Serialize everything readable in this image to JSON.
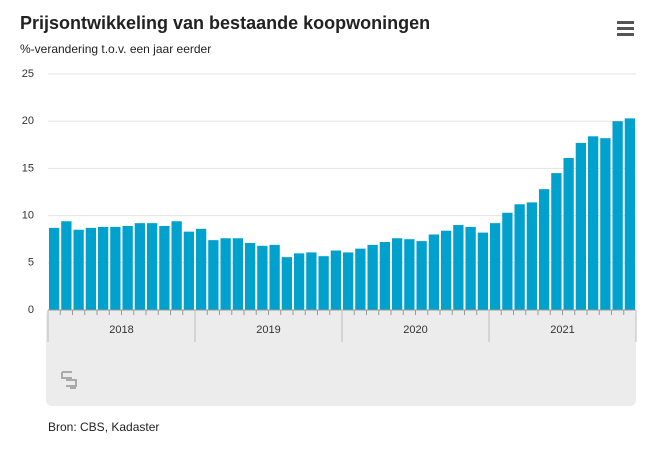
{
  "chart_data": {
    "type": "bar",
    "title": "Prijsontwikkeling van bestaande koopwoningen",
    "subtitle": "%-verandering t.o.v. een jaar eerder",
    "source": "Bron: CBS, Kadaster",
    "categories": [
      null,
      null,
      null,
      null,
      null,
      null,
      null,
      null,
      null,
      null,
      null,
      null,
      null,
      null,
      null,
      null,
      null,
      null,
      null,
      null,
      null,
      null,
      null,
      null,
      null,
      null,
      null,
      null,
      null,
      null,
      null,
      null,
      null,
      null,
      null,
      null,
      null,
      null,
      null,
      null,
      null,
      null,
      null,
      null,
      null,
      null,
      null,
      null
    ],
    "x_groups": [
      "2018",
      "2019",
      "2020",
      "2021"
    ],
    "values": [
      8.7,
      9.4,
      8.5,
      8.7,
      8.8,
      8.8,
      8.9,
      9.2,
      9.2,
      8.9,
      9.4,
      8.3,
      8.6,
      7.4,
      7.6,
      7.6,
      7.1,
      6.8,
      6.9,
      5.6,
      6.0,
      6.1,
      5.7,
      6.3,
      6.1,
      6.5,
      6.9,
      7.2,
      7.6,
      7.5,
      7.3,
      8.0,
      8.4,
      9.0,
      8.8,
      8.2,
      9.2,
      10.3,
      11.2,
      11.4,
      12.8,
      14.5,
      16.1,
      17.7,
      18.4,
      18.2,
      20.0,
      20.3
    ],
    "color": "#00a1cd",
    "ylim": [
      0,
      25
    ],
    "yticks": [
      0,
      5,
      10,
      15,
      20,
      25
    ],
    "grid": true
  }
}
